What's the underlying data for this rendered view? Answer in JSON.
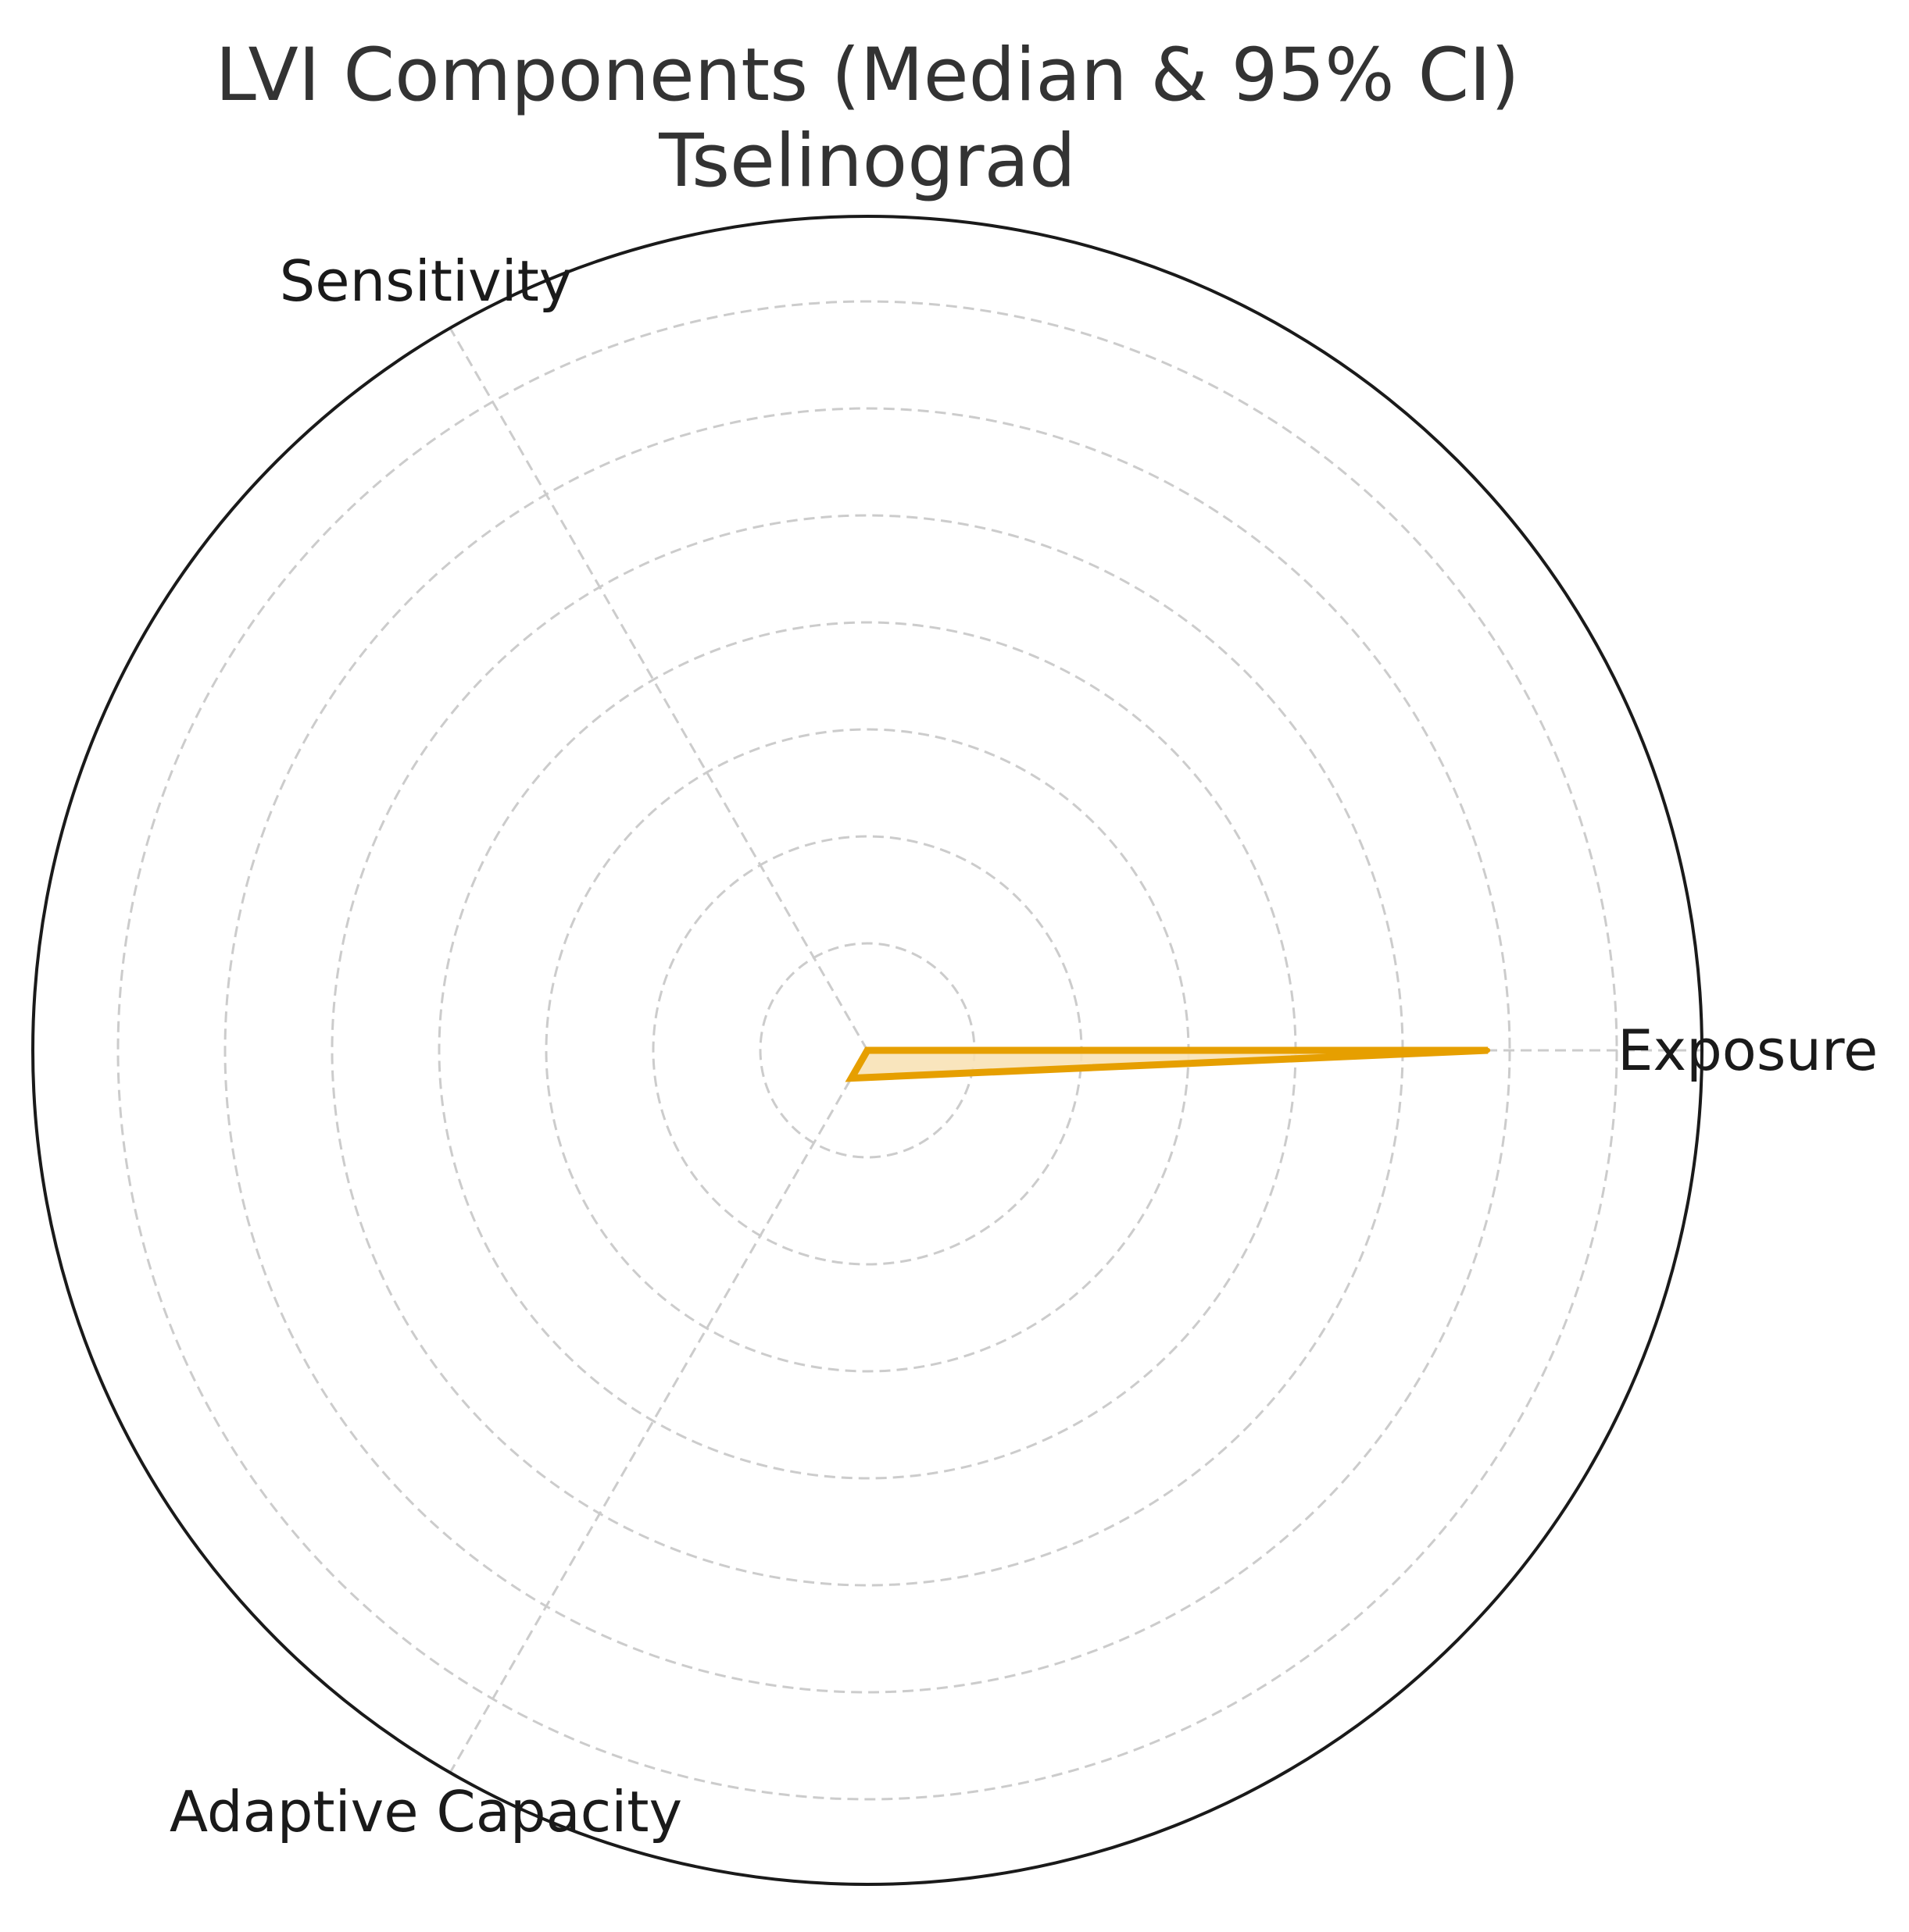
{
  "chart_data": {
    "type": "radar",
    "title": "LVI Components (Median & 95% CI)",
    "subtitle": "Tselinograd",
    "categories": [
      "Exposure",
      "Sensitivity",
      "Adaptive Capacity"
    ],
    "series": [
      {
        "values": [
          0.58,
          0.0,
          0.03
        ],
        "color": "#E69F00",
        "fill_color": "#F8E2B6"
      }
    ],
    "rlim": [
      0,
      0.78
    ],
    "rgrid_count": 7,
    "grid": true,
    "radial_tick_labels": false
  }
}
